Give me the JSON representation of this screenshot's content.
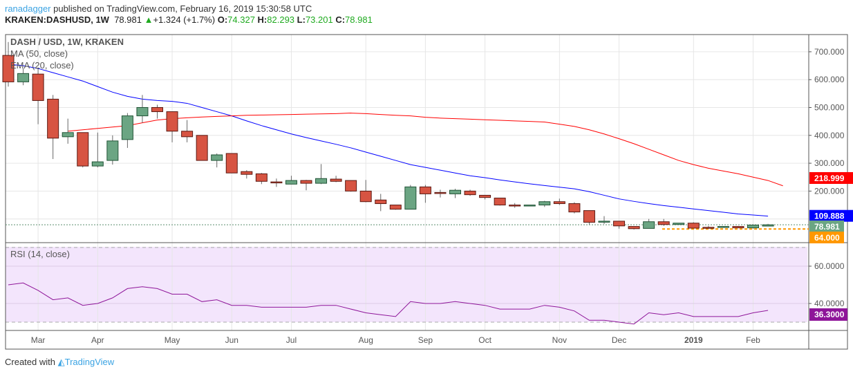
{
  "header": {
    "user": "ranadagger",
    "published": " published on TradingView.com, February 16, 2019 15:30:58 UTC",
    "symbol": "KRAKEN:DASHUSD, 1W",
    "last": "78.981",
    "change": "+1.324 (+1.7%)",
    "o": "74.327",
    "h": "82.293",
    "l": "73.201",
    "c": "78.981"
  },
  "legend": {
    "title": "DASH / USD, 1W, KRAKEN",
    "ma": "MA (50, close)",
    "ema": "EMA (20, close)",
    "rsi": "RSI (14, close)"
  },
  "footer": {
    "created": "Created with",
    "brand": "TradingView"
  },
  "colors": {
    "up": "#6ba583",
    "down": "#d75442",
    "ma50": "#ff0000",
    "ema20": "#0000ff",
    "rsi": "#8e1599",
    "support": "#ff9800"
  },
  "chart_data": [
    {
      "type": "candlestick",
      "title": "DASH / USD, 1W, KRAKEN",
      "ylim": [
        40,
        760
      ],
      "yticks": [
        200,
        300,
        400,
        500,
        600,
        700
      ],
      "ytick_labels": [
        "200.000",
        "300.000",
        "400.000",
        "500.000",
        "600.000",
        "700.000"
      ],
      "xtick_labels": [
        {
          "i": 2,
          "t": "Mar"
        },
        {
          "i": 6,
          "t": "Apr"
        },
        {
          "i": 11,
          "t": "May"
        },
        {
          "i": 15,
          "t": "Jun"
        },
        {
          "i": 19,
          "t": "Jul"
        },
        {
          "i": 24,
          "t": "Aug"
        },
        {
          "i": 28,
          "t": "Sep"
        },
        {
          "i": 32,
          "t": "Oct"
        },
        {
          "i": 37,
          "t": "Nov"
        },
        {
          "i": 41,
          "t": "Dec"
        },
        {
          "i": 46,
          "t": "2019"
        },
        {
          "i": 50,
          "t": "Feb"
        }
      ],
      "ohlc": [
        [
          687,
          735,
          575,
          592
        ],
        [
          592,
          640,
          580,
          622
        ],
        [
          620,
          640,
          440,
          525
        ],
        [
          530,
          545,
          315,
          390
        ],
        [
          395,
          460,
          370,
          410
        ],
        [
          410,
          410,
          285,
          290
        ],
        [
          290,
          410,
          285,
          305
        ],
        [
          310,
          400,
          295,
          380
        ],
        [
          385,
          480,
          355,
          470
        ],
        [
          470,
          545,
          445,
          500
        ],
        [
          500,
          510,
          460,
          485
        ],
        [
          485,
          485,
          375,
          415
        ],
        [
          415,
          455,
          375,
          395
        ],
        [
          400,
          400,
          310,
          310
        ],
        [
          310,
          335,
          285,
          330
        ],
        [
          335,
          335,
          265,
          265
        ],
        [
          270,
          275,
          245,
          260
        ],
        [
          262,
          265,
          225,
          235
        ],
        [
          233,
          245,
          215,
          230
        ],
        [
          225,
          255,
          225,
          238
        ],
        [
          238,
          240,
          203,
          228
        ],
        [
          228,
          297,
          225,
          245
        ],
        [
          243,
          255,
          232,
          235
        ],
        [
          238,
          238,
          198,
          200
        ],
        [
          200,
          240,
          160,
          162
        ],
        [
          168,
          190,
          128,
          155
        ],
        [
          150,
          150,
          133,
          135
        ],
        [
          135,
          222,
          135,
          215
        ],
        [
          215,
          222,
          158,
          190
        ],
        [
          195,
          205,
          177,
          193
        ],
        [
          190,
          208,
          175,
          203
        ],
        [
          200,
          205,
          183,
          187
        ],
        [
          185,
          185,
          170,
          177
        ],
        [
          175,
          175,
          148,
          150
        ],
        [
          150,
          157,
          140,
          148
        ],
        [
          147,
          150,
          146,
          150
        ],
        [
          150,
          165,
          143,
          162
        ],
        [
          162,
          173,
          150,
          155
        ],
        [
          155,
          160,
          120,
          125
        ],
        [
          130,
          130,
          80,
          88
        ],
        [
          90,
          110,
          82,
          92
        ],
        [
          92,
          92,
          65,
          75
        ],
        [
          73,
          73,
          62,
          65
        ],
        [
          66,
          100,
          66,
          90
        ],
        [
          90,
          100,
          75,
          80
        ],
        [
          80,
          85,
          80,
          85
        ],
        [
          85,
          88,
          67,
          67
        ],
        [
          70,
          75,
          69,
          69
        ],
        [
          70,
          73,
          70,
          73
        ],
        [
          73,
          75,
          68,
          68
        ],
        [
          68,
          80,
          65,
          78
        ],
        [
          74.327,
          82.293,
          73.201,
          78.981
        ]
      ],
      "series": [
        {
          "name": "EMA (20, close)",
          "start": 0,
          "values": [
            655,
            650,
            640,
            625,
            610,
            595,
            575,
            555,
            540,
            530,
            525,
            522,
            515,
            500,
            485,
            470,
            452,
            435,
            420,
            405,
            392,
            380,
            368,
            355,
            340,
            325,
            310,
            295,
            285,
            275,
            265,
            255,
            248,
            240,
            233,
            226,
            220,
            214,
            208,
            198,
            185,
            172,
            163,
            155,
            148,
            142,
            136,
            130,
            124,
            118,
            114,
            110
          ]
        },
        {
          "name": "MA (50, close)",
          "start": 4,
          "values": [
            415,
            420,
            425,
            430,
            435,
            445,
            455,
            460,
            463,
            466,
            468,
            470,
            472,
            473,
            474,
            475,
            476,
            477,
            478,
            480,
            478,
            475,
            472,
            470,
            465,
            462,
            460,
            458,
            456,
            454,
            452,
            450,
            448,
            440,
            432,
            420,
            405,
            388,
            370,
            350,
            330,
            310,
            295,
            282,
            272,
            262,
            250,
            238,
            219
          ]
        }
      ],
      "price_tags": [
        {
          "v": 218.999,
          "t": "218.999",
          "c": "#ff0000"
        },
        {
          "v": 109.888,
          "t": "109.888",
          "c": "#0000ff"
        },
        {
          "v": 78.981,
          "t": "78.981",
          "c": "#6ba583"
        },
        {
          "v": 64.0,
          "t": "64.000",
          "c": "#ff9800"
        }
      ],
      "support_line": 64.0
    },
    {
      "type": "line",
      "title": "RSI (14, close)",
      "ylim": [
        25,
        75
      ],
      "bands": [
        30,
        70
      ],
      "yticks": [
        40,
        60
      ],
      "ytick_labels": [
        "40.0000",
        "60.0000"
      ],
      "values": [
        50,
        51,
        47,
        42,
        43,
        39,
        40,
        43,
        48,
        49,
        48,
        45,
        45,
        41,
        42,
        39,
        39,
        38,
        38,
        38,
        38,
        39,
        39,
        37,
        35,
        34,
        33,
        41,
        40,
        40,
        41,
        40,
        39,
        37,
        37,
        37,
        39,
        38,
        36,
        31,
        31,
        30,
        29,
        35,
        34,
        35,
        33,
        33,
        33,
        33,
        35,
        36.3
      ],
      "last_tag": "36.3000"
    }
  ]
}
